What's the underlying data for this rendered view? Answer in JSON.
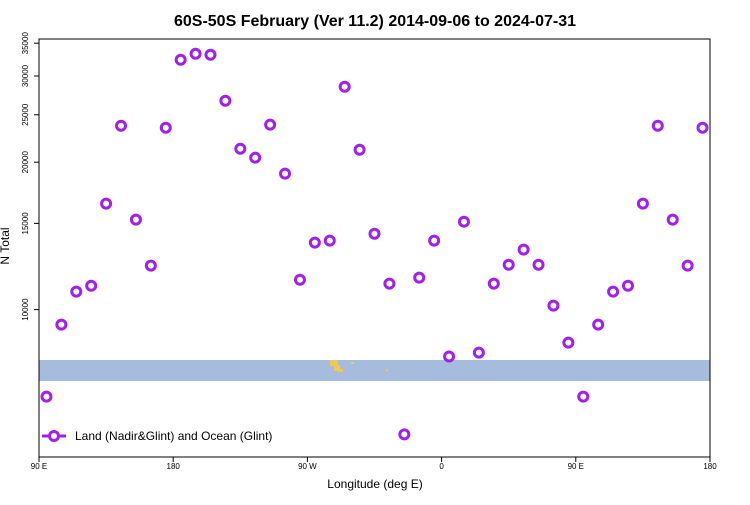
{
  "chart_data": {
    "type": "scatter",
    "title": "60S-50S February (Ver 11.2)   2014-09-06 to 2024-07-31",
    "x_label": "Longitude (deg E)",
    "y_label": "N Total",
    "xlim": [
      90,
      540
    ],
    "ylim": [
      5000,
      35700
    ],
    "yscale": "log",
    "xticks": [
      {
        "value": 90,
        "label": "90 E"
      },
      {
        "value": 180,
        "label": "180"
      },
      {
        "value": 270,
        "label": "90 W"
      },
      {
        "value": 360,
        "label": "0"
      },
      {
        "value": 450,
        "label": "90 E"
      },
      {
        "value": 540,
        "label": "180"
      }
    ],
    "yticks": [
      10000,
      15000,
      20000,
      25000,
      30000,
      35000
    ],
    "legend_position": "bottom-left",
    "series": [
      {
        "name": "Land (Nadir&Glint) and Ocean (Glint)",
        "color": "#a020f0",
        "x": [
          95,
          105,
          115,
          125,
          135,
          145,
          155,
          165,
          175,
          185,
          195,
          205,
          215,
          225,
          235,
          245,
          255,
          265,
          275,
          285,
          295,
          305,
          315,
          325,
          335,
          345,
          355,
          365,
          375,
          385,
          395,
          405,
          415,
          425,
          435,
          445,
          455,
          465,
          475,
          485,
          495,
          505,
          515,
          525,
          535
        ],
        "values": [
          6640,
          9320,
          10880,
          11190,
          16460,
          23740,
          15270,
          12300,
          23520,
          32380,
          33300,
          33150,
          26700,
          21310,
          20430,
          23860,
          18950,
          11510,
          13700,
          13830,
          28520,
          21210,
          14290,
          11300,
          5560,
          11620,
          13830,
          8020,
          15120,
          8170,
          11300,
          12350,
          13260,
          12350,
          10190,
          8560,
          6640,
          9320,
          10880,
          11190,
          16460,
          23740,
          15270,
          12300,
          23520
        ]
      }
    ]
  }
}
